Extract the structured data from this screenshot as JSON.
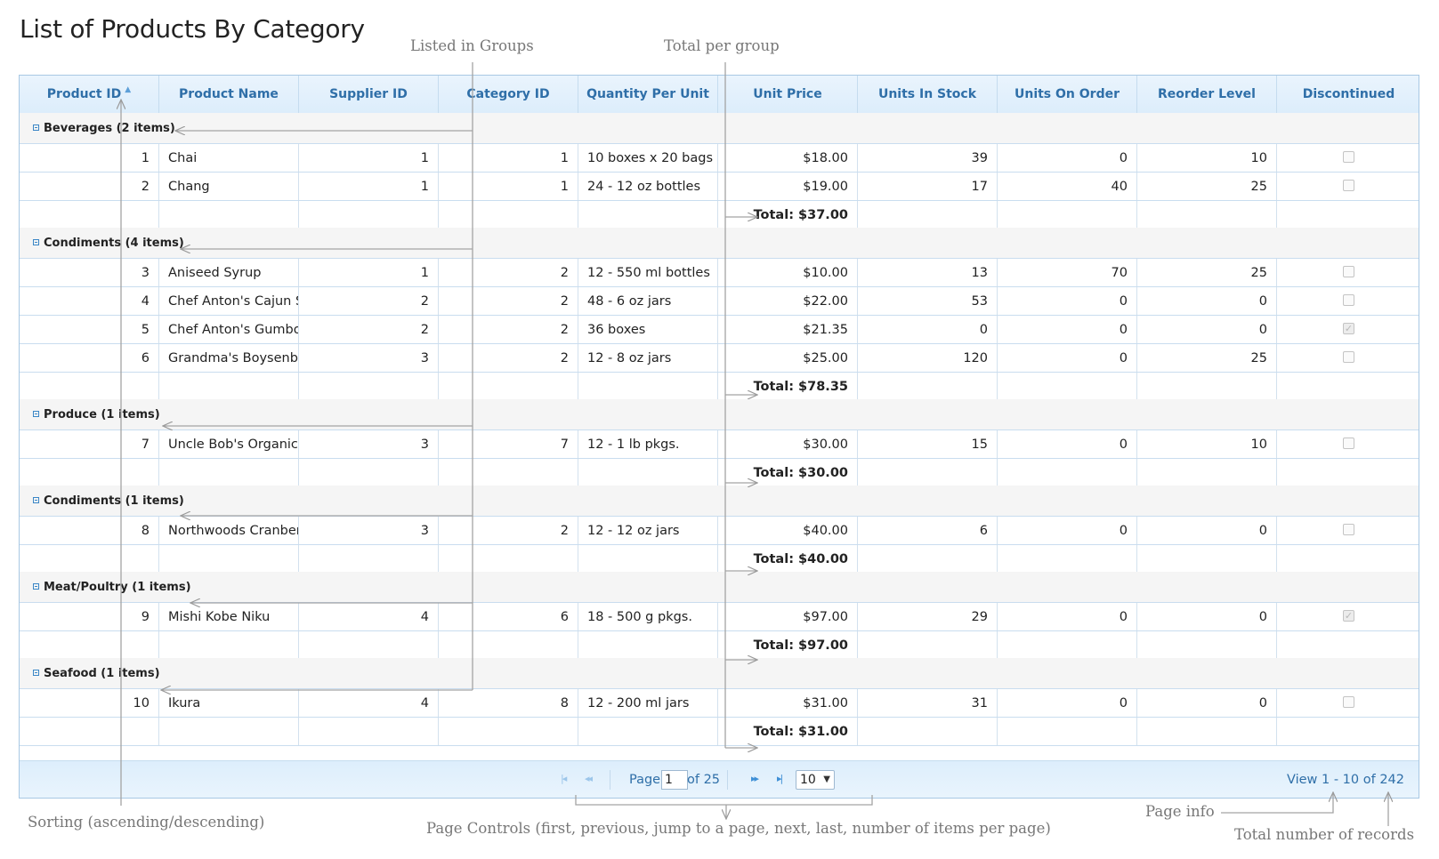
{
  "title": "List of Products By Category",
  "columns": [
    "Product ID",
    "Product Name",
    "Supplier ID",
    "Category ID",
    "Quantity Per Unit",
    "Unit Price",
    "Units In Stock",
    "Units On Order",
    "Reorder Level",
    "Discontinued"
  ],
  "groups": [
    {
      "label": "Beverages (2 items)",
      "total": "Total: $37.00",
      "rows": [
        {
          "id": "1",
          "name": "Chai",
          "supplier": "1",
          "category": "1",
          "qty": "10 boxes x 20 bags",
          "price": "$18.00",
          "stock": "39",
          "order": "0",
          "reorder": "10",
          "discontinued": false
        },
        {
          "id": "2",
          "name": "Chang",
          "supplier": "1",
          "category": "1",
          "qty": "24 - 12 oz bottles",
          "price": "$19.00",
          "stock": "17",
          "order": "40",
          "reorder": "25",
          "discontinued": false
        }
      ]
    },
    {
      "label": "Condiments (4 items)",
      "total": "Total: $78.35",
      "rows": [
        {
          "id": "3",
          "name": "Aniseed Syrup",
          "supplier": "1",
          "category": "2",
          "qty": "12 - 550 ml bottles",
          "price": "$10.00",
          "stock": "13",
          "order": "70",
          "reorder": "25",
          "discontinued": false
        },
        {
          "id": "4",
          "name": "Chef Anton's Cajun S",
          "supplier": "2",
          "category": "2",
          "qty": "48 - 6 oz jars",
          "price": "$22.00",
          "stock": "53",
          "order": "0",
          "reorder": "0",
          "discontinued": false
        },
        {
          "id": "5",
          "name": "Chef Anton's Gumbo",
          "supplier": "2",
          "category": "2",
          "qty": "36 boxes",
          "price": "$21.35",
          "stock": "0",
          "order": "0",
          "reorder": "0",
          "discontinued": true
        },
        {
          "id": "6",
          "name": "Grandma's Boysenbe",
          "supplier": "3",
          "category": "2",
          "qty": "12 - 8 oz jars",
          "price": "$25.00",
          "stock": "120",
          "order": "0",
          "reorder": "25",
          "discontinued": false
        }
      ]
    },
    {
      "label": "Produce (1 items)",
      "total": "Total: $30.00",
      "rows": [
        {
          "id": "7",
          "name": "Uncle Bob's Organic",
          "supplier": "3",
          "category": "7",
          "qty": "12 - 1 lb pkgs.",
          "price": "$30.00",
          "stock": "15",
          "order": "0",
          "reorder": "10",
          "discontinued": false
        }
      ]
    },
    {
      "label": "Condiments (1 items)",
      "total": "Total: $40.00",
      "rows": [
        {
          "id": "8",
          "name": "Northwoods Cranber",
          "supplier": "3",
          "category": "2",
          "qty": "12 - 12 oz jars",
          "price": "$40.00",
          "stock": "6",
          "order": "0",
          "reorder": "0",
          "discontinued": false
        }
      ]
    },
    {
      "label": "Meat/Poultry (1 items)",
      "total": "Total: $97.00",
      "rows": [
        {
          "id": "9",
          "name": "Mishi Kobe Niku",
          "supplier": "4",
          "category": "6",
          "qty": "18 - 500 g pkgs.",
          "price": "$97.00",
          "stock": "29",
          "order": "0",
          "reorder": "0",
          "discontinued": true
        }
      ]
    },
    {
      "label": "Seafood (1 items)",
      "total": "Total: $31.00",
      "rows": [
        {
          "id": "10",
          "name": "Ikura",
          "supplier": "4",
          "category": "8",
          "qty": "12 - 200 ml jars",
          "price": "$31.00",
          "stock": "31",
          "order": "0",
          "reorder": "0",
          "discontinued": false
        }
      ]
    }
  ],
  "pager": {
    "page_label": "Page",
    "page_value": "1",
    "of_label": "of 25",
    "page_size": "10",
    "view_info": "View 1 - 10 of 242"
  },
  "annotations": {
    "listed_in_groups": "Listed in Groups",
    "total_per_group": "Total per group",
    "sorting": "Sorting (ascending/descending)",
    "page_controls": "Page Controls (first, previous, jump to a page, next, last, number of items per page)",
    "page_info": "Page info",
    "total_records": "Total number of records"
  },
  "icons": {
    "sort": "sort-ascending-icon",
    "group_toggle": "collapse-minus-icon",
    "first": "first-page-icon",
    "prev": "previous-page-icon",
    "next": "next-page-icon",
    "last": "last-page-icon"
  },
  "colors": {
    "header_text": "#2f6fa8",
    "annotation": "#777777",
    "border": "#a8c8e4"
  }
}
